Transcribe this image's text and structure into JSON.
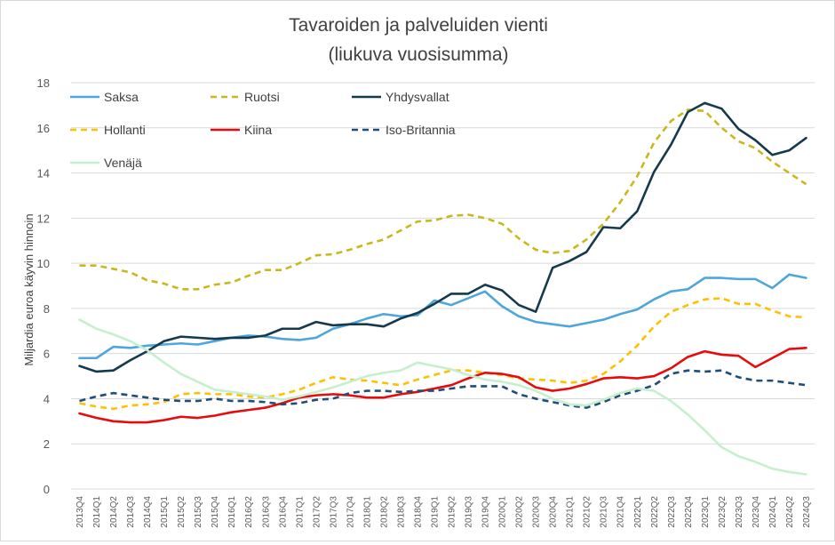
{
  "chart_data": {
    "type": "line",
    "title": "Tavaroiden ja palveluiden vienti",
    "subtitle": "(liukuva vuosisumma)",
    "ylabel": "Miljardia euroa käyvin hinnoin",
    "ylim": [
      0,
      18
    ],
    "yticks": [
      0,
      2,
      4,
      6,
      8,
      10,
      12,
      14,
      16,
      18
    ],
    "grid": "horizontal",
    "legend_position": "top-left",
    "categories": [
      "2013Q4",
      "2014Q1",
      "2014Q2",
      "2014Q3",
      "2014Q4",
      "2015Q1",
      "2015Q2",
      "2015Q3",
      "2015Q4",
      "2016Q1",
      "2016Q2",
      "2016Q3",
      "2016Q4",
      "2017Q1",
      "2017Q2",
      "2017Q3",
      "2017Q4",
      "2018Q1",
      "2018Q2",
      "2018Q3",
      "2018Q4",
      "2019Q1",
      "2019Q2",
      "2019Q3",
      "2019Q4",
      "2020Q1",
      "2020Q2",
      "2020Q3",
      "2020Q4",
      "2021Q1",
      "2021Q2",
      "2021Q3",
      "2021Q4",
      "2022Q1",
      "2022Q2",
      "2022Q3",
      "2022Q4",
      "2023Q1",
      "2023Q2",
      "2023Q3",
      "2023Q4",
      "2024Q1",
      "2024Q2",
      "2024Q3"
    ],
    "series": [
      {
        "name": "Saksa",
        "color": "#4ea6dc",
        "dash": "solid",
        "values": [
          5.8,
          5.8,
          6.3,
          6.25,
          6.35,
          6.4,
          6.45,
          6.4,
          6.55,
          6.7,
          6.8,
          6.75,
          6.65,
          6.6,
          6.7,
          7.1,
          7.3,
          7.55,
          7.75,
          7.65,
          7.7,
          8.35,
          8.15,
          8.45,
          8.75,
          8.1,
          7.65,
          7.4,
          7.3,
          7.2,
          7.35,
          7.5,
          7.75,
          7.95,
          8.4,
          8.75,
          8.85,
          9.35,
          9.35,
          9.3,
          9.3,
          8.9,
          9.5,
          9.35
        ]
      },
      {
        "name": "Ruotsi",
        "color": "#c9b81b",
        "dash": "dashed",
        "values": [
          9.9,
          9.9,
          9.75,
          9.6,
          9.25,
          9.1,
          8.85,
          8.85,
          9.05,
          9.15,
          9.45,
          9.7,
          9.7,
          10.0,
          10.35,
          10.4,
          10.6,
          10.85,
          11.05,
          11.45,
          11.85,
          11.9,
          12.1,
          12.15,
          12.0,
          11.75,
          11.1,
          10.6,
          10.45,
          10.55,
          11.05,
          11.75,
          12.7,
          13.85,
          15.35,
          16.3,
          16.8,
          16.75,
          16.0,
          15.4,
          15.1,
          14.5,
          14.0,
          13.5
        ]
      },
      {
        "name": "Yhdysvallat",
        "color": "#163a4d",
        "dash": "solid",
        "values": [
          5.45,
          5.2,
          5.25,
          5.7,
          6.1,
          6.55,
          6.75,
          6.7,
          6.65,
          6.7,
          6.7,
          6.8,
          7.1,
          7.1,
          7.4,
          7.25,
          7.3,
          7.3,
          7.2,
          7.55,
          7.8,
          8.2,
          8.65,
          8.65,
          9.05,
          8.8,
          8.15,
          7.85,
          9.8,
          10.1,
          10.5,
          11.6,
          11.55,
          12.3,
          14.05,
          15.25,
          16.7,
          17.1,
          16.85,
          15.95,
          15.45,
          14.8,
          15.0,
          15.55
        ]
      },
      {
        "name": "Hollanti",
        "color": "#ffc000",
        "dash": "dashed",
        "values": [
          3.8,
          3.65,
          3.55,
          3.7,
          3.75,
          3.85,
          4.2,
          4.25,
          4.2,
          4.2,
          4.1,
          4.05,
          4.2,
          4.4,
          4.7,
          4.95,
          4.85,
          4.8,
          4.7,
          4.6,
          4.85,
          5.05,
          5.25,
          5.25,
          5.15,
          5.05,
          4.9,
          4.85,
          4.8,
          4.7,
          4.8,
          5.1,
          5.65,
          6.35,
          7.2,
          7.85,
          8.15,
          8.4,
          8.45,
          8.2,
          8.2,
          7.9,
          7.65,
          7.6
        ]
      },
      {
        "name": "Kiina",
        "color": "#e40c0c",
        "dash": "solid",
        "values": [
          3.35,
          3.15,
          3.0,
          2.95,
          2.95,
          3.05,
          3.2,
          3.15,
          3.25,
          3.4,
          3.5,
          3.6,
          3.8,
          4.05,
          4.15,
          4.2,
          4.15,
          4.05,
          4.05,
          4.2,
          4.3,
          4.45,
          4.6,
          4.9,
          5.15,
          5.1,
          4.95,
          4.5,
          4.35,
          4.45,
          4.65,
          4.9,
          4.95,
          4.9,
          5.0,
          5.35,
          5.85,
          6.1,
          5.95,
          5.9,
          5.4,
          5.8,
          6.2,
          6.25
        ]
      },
      {
        "name": "Iso-Britannia",
        "color": "#1f4e79",
        "dash": "dashed",
        "values": [
          3.9,
          4.1,
          4.25,
          4.15,
          4.05,
          3.95,
          3.9,
          3.9,
          4.0,
          3.9,
          3.9,
          3.85,
          3.75,
          3.8,
          3.95,
          4.0,
          4.25,
          4.35,
          4.35,
          4.3,
          4.35,
          4.35,
          4.45,
          4.55,
          4.55,
          4.55,
          4.2,
          4.0,
          3.85,
          3.7,
          3.6,
          3.85,
          4.15,
          4.35,
          4.6,
          5.1,
          5.25,
          5.2,
          5.25,
          4.95,
          4.8,
          4.8,
          4.7,
          4.6
        ]
      },
      {
        "name": "Venäjä",
        "color": "#c6efce",
        "dash": "solid",
        "values": [
          7.5,
          7.1,
          6.85,
          6.55,
          6.15,
          5.6,
          5.1,
          4.75,
          4.4,
          4.3,
          4.2,
          4.1,
          3.95,
          4.1,
          4.3,
          4.5,
          4.75,
          5.0,
          5.15,
          5.25,
          5.6,
          5.45,
          5.3,
          5.05,
          4.85,
          4.75,
          4.6,
          4.35,
          4.0,
          3.75,
          3.7,
          3.95,
          4.25,
          4.45,
          4.35,
          3.9,
          3.3,
          2.6,
          1.85,
          1.45,
          1.2,
          0.9,
          0.75,
          0.65
        ]
      }
    ]
  }
}
